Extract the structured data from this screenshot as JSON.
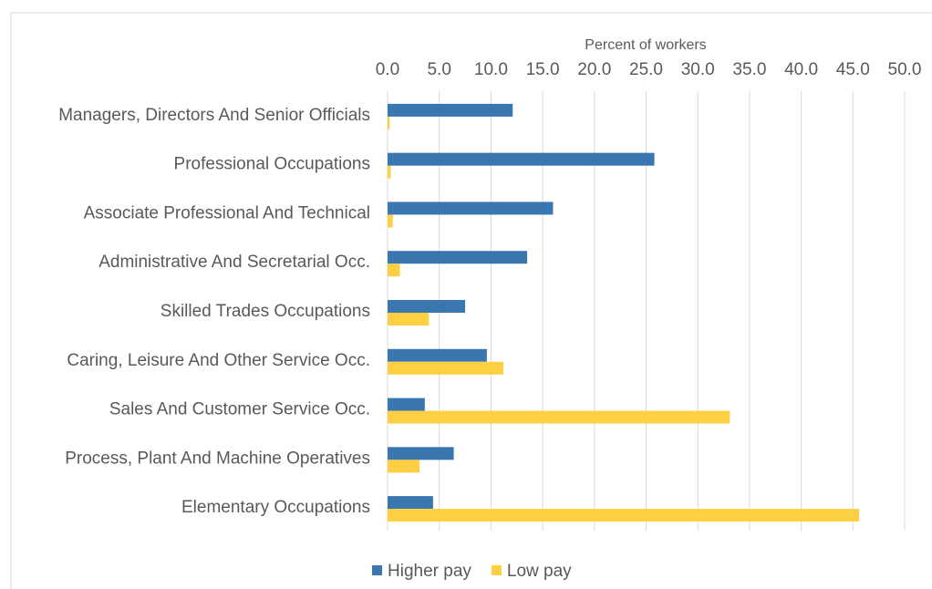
{
  "chart_data": {
    "type": "hbar",
    "x_label": "Percent of workers",
    "categories": [
      "Managers, Directors And Senior Officials",
      "Professional Occupations",
      "Associate Professional And Technical",
      "Administrative And Secretarial Occ.",
      "Skilled Trades Occupations",
      "Caring, Leisure And Other Service Occ.",
      "Sales And Customer Service Occ.",
      "Process, Plant And Machine Operatives",
      "Elementary Occupations"
    ],
    "series": [
      {
        "name": "Higher pay",
        "color": "#3a76b0",
        "values": [
          12.1,
          25.8,
          16.0,
          13.5,
          7.5,
          9.6,
          3.6,
          6.4,
          4.4
        ]
      },
      {
        "name": "Low pay",
        "color": "#fdcf43",
        "values": [
          0.2,
          0.3,
          0.5,
          1.2,
          4.0,
          11.2,
          33.1,
          3.1,
          45.6
        ]
      }
    ],
    "xlim": [
      0,
      50
    ],
    "xticks": [
      {
        "value": 0,
        "label": "0.0"
      },
      {
        "value": 5,
        "label": "5.0"
      },
      {
        "value": 10,
        "label": "10.0"
      },
      {
        "value": 15,
        "label": "15.0"
      },
      {
        "value": 20,
        "label": "20.0"
      },
      {
        "value": 25,
        "label": "25.0"
      },
      {
        "value": 30,
        "label": "30.0"
      },
      {
        "value": 35,
        "label": "35.0"
      },
      {
        "value": 40,
        "label": "40.0"
      },
      {
        "value": 45,
        "label": "45.0"
      },
      {
        "value": 50,
        "label": "50.0"
      }
    ],
    "grid": true,
    "legend": "bottom"
  }
}
